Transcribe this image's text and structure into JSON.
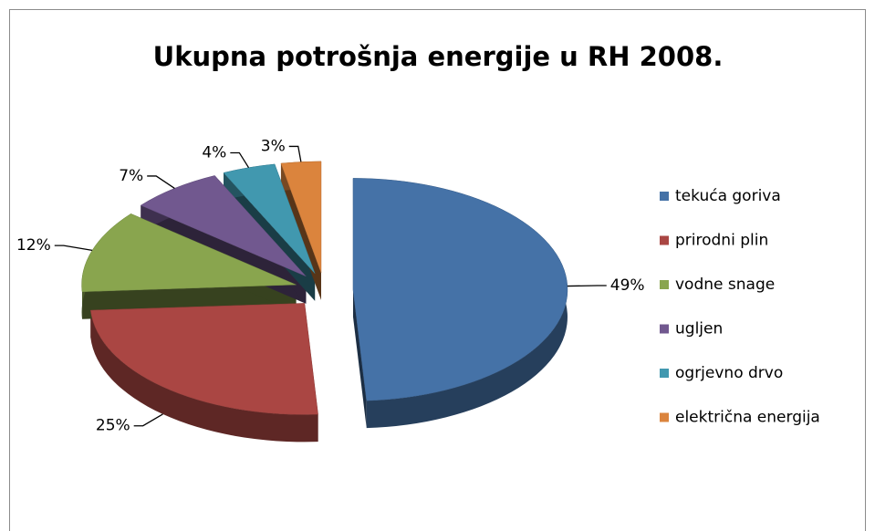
{
  "chart_data": {
    "type": "pie",
    "title": "Ukupna potrošnja energije u RH 2008.",
    "categories": [
      "tekuća goriva",
      "prirodni plin",
      "vodne snage",
      "ugljen",
      "ogrjevno drvo",
      "električna energija"
    ],
    "values": [
      49,
      25,
      12,
      7,
      4,
      3
    ],
    "value_labels": [
      "49%",
      "25%",
      "12%",
      "7%",
      "4%",
      "3%"
    ],
    "colors": [
      "#4572a7",
      "#aa4643",
      "#89a54e",
      "#71588f",
      "#4198af",
      "#db843d"
    ],
    "legend": "right"
  }
}
